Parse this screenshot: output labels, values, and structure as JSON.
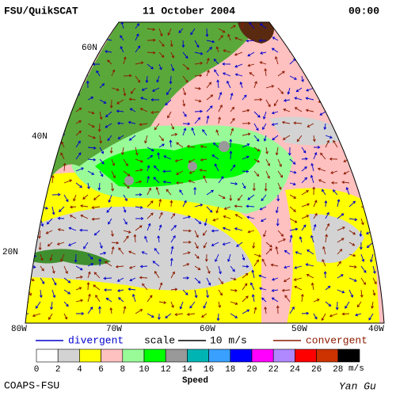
{
  "header": {
    "title": "FSU/QuikSCAT",
    "date": "11 October 2004",
    "time": "00:00"
  },
  "map": {
    "lat_labels": [
      "60N",
      "40N",
      "20N"
    ],
    "lon_labels": [
      "80W",
      "70W",
      "60W",
      "50W",
      "40W"
    ]
  },
  "legend": {
    "divergent": "divergent",
    "scale": "scale",
    "scale_value": "10 m/s",
    "convergent": "convergent",
    "divergent_color": "#0000cc",
    "convergent_color": "#8b1a00"
  },
  "colorbar": {
    "labels": [
      0,
      2,
      4,
      6,
      8,
      10,
      12,
      14,
      16,
      18,
      20,
      22,
      24,
      26,
      28
    ],
    "unit": "m/s",
    "title": "Speed",
    "colors": [
      "#ffffff",
      "#d3d3d3",
      "#ffff00",
      "#ffc0c0",
      "#98fb98",
      "#00ff00",
      "#999999",
      "#00b4b4",
      "#3aa0ff",
      "#0000ff",
      "#ff00ff",
      "#b088ff",
      "#ff0000",
      "#cc3300",
      "#000000"
    ]
  },
  "footer": {
    "left": "COAPS-FSU",
    "right": "Yan Gu"
  }
}
